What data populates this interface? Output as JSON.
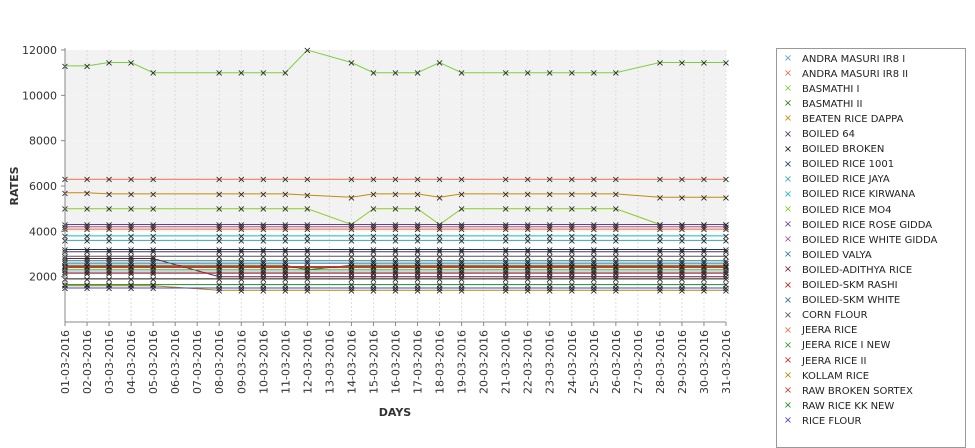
{
  "chart_data": {
    "type": "line",
    "xlabel": "DAYS",
    "ylabel": "RATES",
    "ylim": [
      0,
      12000
    ],
    "yticks": [
      2000,
      4000,
      6000,
      8000,
      10000,
      12000
    ],
    "y_tick_labels": [
      "2000",
      "4000",
      "6000",
      "8000",
      "10000",
      "12000"
    ],
    "grid": "alternating horizontal bands",
    "legend_position": "right",
    "x": [
      "01-03-2016",
      "02-03-2016",
      "03-03-2016",
      "04-03-2016",
      "05-03-2016",
      "06-03-2016",
      "07-03-2016",
      "08-03-2016",
      "09-03-2016",
      "10-03-2016",
      "11-03-2016",
      "12-03-2016",
      "13-03-2016",
      "14-03-2016",
      "15-03-2016",
      "16-03-2016",
      "17-03-2016",
      "18-03-2016",
      "19-03-2016",
      "20-03-2016",
      "21-03-2016",
      "22-03-2016",
      "23-03-2016",
      "24-03-2016",
      "25-03-2016",
      "26-03-2016",
      "27-03-2016",
      "28-03-2016",
      "29-03-2016",
      "30-03-2016",
      "31-03-2016"
    ],
    "series": [
      {
        "name": "ANDRA MASURI IR8 I",
        "color": "#5a9bd4",
        "values": [
          2200,
          2200,
          2200,
          2200,
          2200,
          null,
          null,
          2200,
          2200,
          2200,
          2200,
          2200,
          null,
          2200,
          2200,
          2200,
          2200,
          2200,
          2200,
          null,
          2200,
          2200,
          2200,
          2200,
          2200,
          2200,
          null,
          2200,
          2200,
          2200,
          2200
        ]
      },
      {
        "name": "ANDRA MASURI IR8 II",
        "color": "#e8704a",
        "values": [
          6300,
          6300,
          6300,
          6300,
          6300,
          null,
          null,
          6300,
          6300,
          6300,
          6300,
          6300,
          null,
          6300,
          6300,
          6300,
          6300,
          6300,
          6300,
          null,
          6300,
          6300,
          6300,
          6300,
          6300,
          6300,
          null,
          6300,
          6300,
          6300,
          6300
        ]
      },
      {
        "name": "BASMATHI I",
        "color": "#7ccf3c",
        "values": [
          11300,
          11300,
          11450,
          11450,
          11000,
          null,
          null,
          11000,
          11000,
          11000,
          11000,
          12000,
          null,
          11450,
          11000,
          11000,
          11000,
          11450,
          11000,
          null,
          11000,
          11000,
          11000,
          11000,
          11000,
          11000,
          null,
          11450,
          11450,
          11450,
          11450
        ]
      },
      {
        "name": "BASMATHI II",
        "color": "#2c7a1a",
        "values": [
          2500,
          2500,
          2500,
          2500,
          2500,
          null,
          null,
          2500,
          2500,
          2500,
          2500,
          2300,
          null,
          2500,
          2500,
          2500,
          2500,
          2500,
          2500,
          null,
          2500,
          2500,
          2500,
          2500,
          2500,
          2500,
          null,
          2500,
          2500,
          2500,
          2500
        ]
      },
      {
        "name": "BEATEN RICE DAPPA",
        "color": "#c48a0a",
        "values": [
          5700,
          5700,
          5650,
          5650,
          5650,
          null,
          null,
          5650,
          5650,
          5650,
          5650,
          5600,
          null,
          5500,
          5650,
          5650,
          5650,
          5500,
          5650,
          null,
          5650,
          5650,
          5650,
          5650,
          5650,
          5650,
          null,
          5500,
          5500,
          5500,
          5500
        ]
      },
      {
        "name": "BOILED 64",
        "color": "#552f6b",
        "values": [
          3100,
          3100,
          3100,
          3100,
          3100,
          null,
          null,
          3100,
          3100,
          3100,
          3100,
          3100,
          null,
          3100,
          3100,
          3100,
          3100,
          3100,
          3100,
          null,
          3100,
          3100,
          3100,
          3100,
          3100,
          3100,
          null,
          3100,
          3100,
          3100,
          3100
        ]
      },
      {
        "name": "BOILED BROKEN",
        "color": "#1a1a1a",
        "values": [
          1900,
          1900,
          1900,
          1900,
          1900,
          null,
          null,
          1900,
          1900,
          1900,
          1900,
          1900,
          null,
          1900,
          1900,
          1900,
          1900,
          1900,
          1900,
          null,
          1900,
          1900,
          1900,
          1900,
          1900,
          1900,
          null,
          1900,
          1900,
          1900,
          1900
        ]
      },
      {
        "name": "BOILED RICE 1001",
        "color": "#1c3a5e",
        "values": [
          3200,
          3200,
          3200,
          3200,
          3200,
          null,
          null,
          3200,
          3200,
          3200,
          3200,
          3200,
          null,
          3200,
          3200,
          3200,
          3200,
          3200,
          3200,
          null,
          3200,
          3200,
          3200,
          3200,
          3200,
          3200,
          null,
          3200,
          3200,
          3200,
          3200
        ]
      },
      {
        "name": "BOILED RICE JAYA",
        "color": "#3aa6a6",
        "values": [
          3600,
          3600,
          3600,
          3600,
          3600,
          null,
          null,
          3600,
          3600,
          3600,
          3600,
          3600,
          null,
          3600,
          3600,
          3600,
          3600,
          3600,
          3600,
          null,
          3600,
          3600,
          3600,
          3600,
          3600,
          3600,
          null,
          3600,
          3600,
          3600,
          3600
        ]
      },
      {
        "name": "BOILED RICE KIRWANA",
        "color": "#1ab3c4",
        "values": [
          3800,
          3800,
          3800,
          3800,
          3800,
          null,
          null,
          3800,
          3800,
          3800,
          3800,
          3800,
          null,
          3800,
          3800,
          3800,
          3800,
          3800,
          3800,
          null,
          3800,
          3800,
          3800,
          3800,
          3800,
          3800,
          null,
          3800,
          3800,
          3800,
          3800
        ]
      },
      {
        "name": "BOILED RICE MO4",
        "color": "#8ac926",
        "values": [
          5000,
          5000,
          5000,
          5000,
          5000,
          null,
          null,
          5000,
          5000,
          5000,
          5000,
          5000,
          null,
          4300,
          5000,
          5000,
          5000,
          4300,
          5000,
          null,
          5000,
          5000,
          5000,
          5000,
          5000,
          5000,
          null,
          4300,
          4300,
          4300,
          4300
        ]
      },
      {
        "name": "BOILED RICE ROSE GIDDA",
        "color": "#6a3d9a",
        "values": [
          4300,
          4300,
          4300,
          4300,
          4300,
          null,
          null,
          4300,
          4300,
          4300,
          4300,
          4300,
          null,
          4300,
          4300,
          4300,
          4300,
          4300,
          4300,
          null,
          4300,
          4300,
          4300,
          4300,
          4300,
          4300,
          null,
          4300,
          4300,
          4300,
          4300
        ]
      },
      {
        "name": "BOILED RICE WHITE GIDDA",
        "color": "#a05a8c",
        "values": [
          4200,
          4200,
          4200,
          4200,
          4200,
          null,
          null,
          4200,
          4200,
          4200,
          4200,
          4200,
          null,
          4200,
          4200,
          4200,
          4200,
          4200,
          4200,
          null,
          4200,
          4200,
          4200,
          4200,
          4200,
          4200,
          null,
          4200,
          4200,
          4200,
          4200
        ]
      },
      {
        "name": "BOILED VALYA",
        "color": "#2e7d8c",
        "values": [
          2700,
          2700,
          2700,
          2700,
          2700,
          null,
          null,
          2700,
          2700,
          2700,
          2700,
          2700,
          null,
          2700,
          2700,
          2700,
          2700,
          2700,
          2700,
          null,
          2700,
          2700,
          2700,
          2700,
          2700,
          2700,
          null,
          2700,
          2700,
          2700,
          2700
        ]
      },
      {
        "name": "BOILED-ADITHYA RICE",
        "color": "#7a1f3d",
        "values": [
          2800,
          2800,
          2800,
          2800,
          2800,
          null,
          null,
          2000,
          2000,
          2000,
          2000,
          2000,
          null,
          2000,
          2000,
          2000,
          2000,
          2000,
          2000,
          null,
          2000,
          2000,
          2000,
          2000,
          2000,
          2000,
          null,
          2000,
          2000,
          2000,
          2000
        ]
      },
      {
        "name": "BOILED-SKM RASHI",
        "color": "#b22222",
        "values": [
          2400,
          2400,
          2400,
          2400,
          2400,
          null,
          null,
          2400,
          2400,
          2400,
          2400,
          2400,
          null,
          2400,
          2400,
          2400,
          2400,
          2400,
          2400,
          null,
          2400,
          2400,
          2400,
          2400,
          2400,
          2400,
          null,
          2400,
          2400,
          2400,
          2400
        ]
      },
      {
        "name": "BOILED-SKM WHITE",
        "color": "#2b6ca3",
        "values": [
          2600,
          2600,
          2600,
          2600,
          2600,
          null,
          null,
          2600,
          2600,
          2600,
          2600,
          2600,
          null,
          2600,
          2600,
          2600,
          2600,
          2600,
          2600,
          null,
          2600,
          2600,
          2600,
          2600,
          2600,
          2600,
          null,
          2600,
          2600,
          2600,
          2600
        ]
      },
      {
        "name": "CORN FLOUR",
        "color": "#555555",
        "values": [
          2900,
          2900,
          2900,
          2900,
          2900,
          null,
          null,
          2900,
          2900,
          2900,
          2900,
          2900,
          null,
          2900,
          2900,
          2900,
          2900,
          2900,
          2900,
          null,
          2900,
          2900,
          2900,
          2900,
          2900,
          2900,
          null,
          2900,
          2900,
          2900,
          2900
        ]
      },
      {
        "name": "JEERA RICE",
        "color": "#e8704a",
        "values": [
          4100,
          4100,
          4100,
          4100,
          4100,
          null,
          null,
          4100,
          4100,
          4100,
          4100,
          4100,
          null,
          4100,
          4100,
          4100,
          4100,
          4100,
          4100,
          null,
          4100,
          4100,
          4100,
          4100,
          4100,
          4100,
          null,
          4100,
          4100,
          4100,
          4100
        ]
      },
      {
        "name": "JEERA RICE I NEW",
        "color": "#2ca02c",
        "values": [
          2300,
          2300,
          2300,
          2300,
          2300,
          null,
          null,
          2300,
          2300,
          2300,
          2300,
          2300,
          null,
          2300,
          2300,
          2300,
          2300,
          2300,
          2300,
          null,
          2300,
          2300,
          2300,
          2300,
          2300,
          2300,
          null,
          2300,
          2300,
          2300,
          2300
        ]
      },
      {
        "name": "JEERA RICE II",
        "color": "#d62728",
        "values": [
          2150,
          2150,
          2150,
          2150,
          2150,
          null,
          null,
          2150,
          2150,
          2150,
          2150,
          2150,
          null,
          2150,
          2150,
          2150,
          2150,
          2150,
          2150,
          null,
          2150,
          2150,
          2150,
          2150,
          2150,
          2150,
          null,
          2150,
          2150,
          2150,
          2150
        ]
      },
      {
        "name": "KOLLAM RICE",
        "color": "#b8860b",
        "values": [
          1600,
          1600,
          1600,
          1600,
          1600,
          null,
          null,
          1400,
          1400,
          1400,
          1400,
          1400,
          null,
          1400,
          1400,
          1400,
          1400,
          1400,
          1400,
          null,
          1400,
          1400,
          1400,
          1400,
          1400,
          1400,
          null,
          1400,
          1400,
          1400,
          1400
        ]
      },
      {
        "name": "RAW BROKEN SORTEX",
        "color": "#c0392b",
        "values": [
          2450,
          2450,
          2450,
          2450,
          2450,
          null,
          null,
          2450,
          2450,
          2450,
          2450,
          2450,
          null,
          2450,
          2450,
          2450,
          2450,
          2450,
          2450,
          null,
          2450,
          2450,
          2450,
          2450,
          2450,
          2450,
          null,
          2450,
          2450,
          2450,
          2450
        ]
      },
      {
        "name": "RAW RICE KK NEW",
        "color": "#1e8c1e",
        "values": [
          1650,
          1650,
          1650,
          1650,
          1650,
          null,
          null,
          1650,
          1650,
          1650,
          1650,
          1650,
          null,
          1650,
          1650,
          1650,
          1650,
          1650,
          1650,
          null,
          1650,
          1650,
          1650,
          1650,
          1650,
          1650,
          null,
          1650,
          1650,
          1650,
          1650
        ]
      },
      {
        "name": "RICE FLOUR",
        "color": "#4444cc",
        "values": [
          1500,
          1500,
          1500,
          1500,
          1500,
          null,
          null,
          1500,
          1500,
          1500,
          1500,
          1500,
          null,
          1500,
          1500,
          1500,
          1500,
          1500,
          1500,
          null,
          1500,
          1500,
          1500,
          1500,
          1500,
          1500,
          null,
          1500,
          1500,
          1500,
          1500
        ]
      }
    ]
  }
}
